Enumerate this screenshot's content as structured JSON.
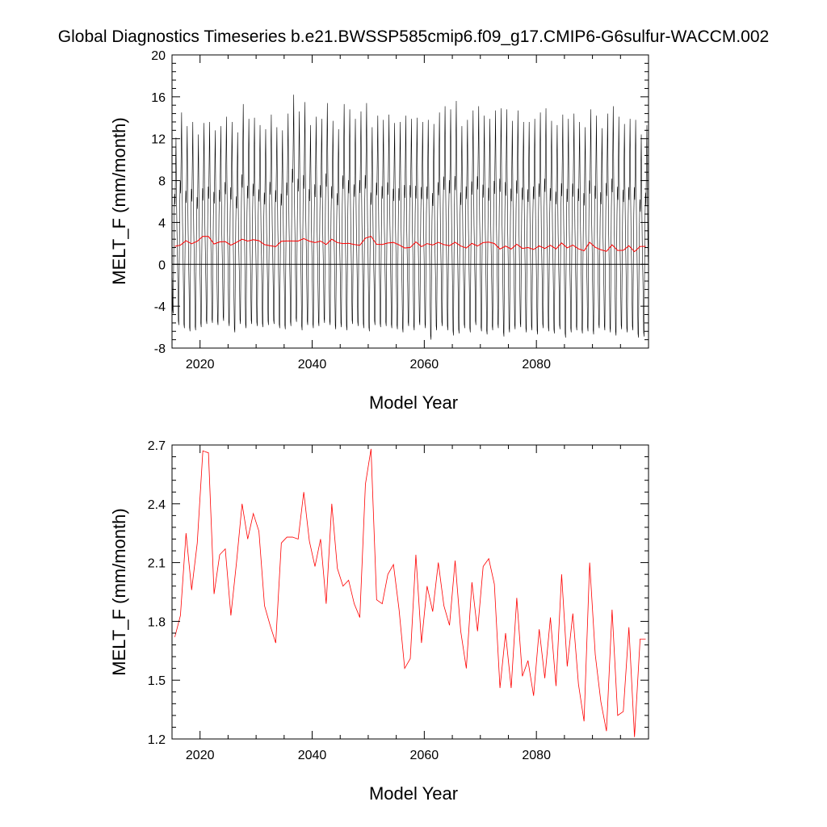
{
  "title": "Global Diagnostics Timeseries b.e21.BWSSP585cmip6.f09_g17.CMIP6-G6sulfur-WACCM.002",
  "colors": {
    "monthly": "#000000",
    "annual": "#ff0000",
    "zero_line": "#000000"
  },
  "chart_data": [
    {
      "type": "line",
      "xlabel": "Model Year",
      "ylabel": "MELT_F (mm/month)",
      "xlim": [
        2015,
        2100
      ],
      "ylim": [
        -8,
        20
      ],
      "xticks": [
        "2020",
        "2040",
        "2060",
        "2080"
      ],
      "yticks": [
        "-8",
        "-4",
        "0",
        "4",
        "8",
        "12",
        "16",
        "20"
      ],
      "reference_line_y": 0,
      "monthly_series": {
        "start_year": 2015,
        "months_per_year": 12,
        "annual_peak": [
          12.1,
          14.5,
          13.2,
          13.6,
          12.4,
          13.5,
          13.6,
          12.8,
          13.2,
          14.1,
          13.6,
          12.6,
          15.3,
          13.9,
          14.0,
          13.3,
          12.9,
          14.3,
          13.1,
          12.8,
          14.4,
          16.2,
          14.6,
          15.5,
          13.3,
          14.1,
          13.9,
          15.4,
          13.7,
          12.9,
          15.3,
          14.8,
          13.9,
          14.6,
          15.4,
          13.1,
          14.2,
          13.8,
          14.3,
          13.5,
          13.6,
          14.2,
          13.9,
          14.0,
          13.6,
          13.8,
          13.4,
          14.5,
          15.1,
          14.8,
          15.6,
          13.2,
          13.8,
          14.7,
          15.1,
          14.2,
          13.9,
          14.7,
          14.9,
          14.8,
          13.7,
          14.7,
          13.6,
          13.6,
          13.9,
          14.5,
          14.9,
          13.7,
          13.3,
          14.3,
          13.9,
          14.4,
          13.6,
          13.1,
          14.8,
          14.2,
          13.0,
          14.4,
          15.1,
          14.1,
          13.4,
          13.9,
          13.8,
          12.4,
          13.3
        ],
        "annual_trough": [
          -4.7,
          -5.8,
          -6.1,
          -6.4,
          -6.3,
          -6.0,
          -5.7,
          -5.6,
          -5.8,
          -5.4,
          -5.9,
          -6.5,
          -5.7,
          -6.1,
          -5.7,
          -5.9,
          -6.0,
          -5.8,
          -5.7,
          -6.1,
          -6.2,
          -5.9,
          -5.5,
          -6.3,
          -5.8,
          -6.1,
          -5.9,
          -5.6,
          -5.8,
          -6.2,
          -6.0,
          -6.3,
          -5.7,
          -5.9,
          -6.1,
          -6.4,
          -5.8,
          -6.0,
          -5.9,
          -6.1,
          -6.2,
          -6.5,
          -5.9,
          -6.3,
          -5.8,
          -6.1,
          -7.2,
          -6.3,
          -5.9,
          -6.3,
          -6.8,
          -6.6,
          -6.1,
          -6.5,
          -5.8,
          -6.4,
          -6.7,
          -6.3,
          -6.1,
          -6.9,
          -6.5,
          -6.2,
          -6.0,
          -6.5,
          -6.3,
          -6.7,
          -6.1,
          -6.4,
          -6.6,
          -6.2,
          -7.0,
          -6.5,
          -6.3,
          -6.6,
          -6.4,
          -6.7,
          -6.1,
          -6.3,
          -6.5,
          -6.8,
          -6.2,
          -6.5,
          -6.3,
          -7.0,
          -6.9
        ]
      },
      "annual_mean": {
        "x": [
          2015,
          2016,
          2017,
          2018,
          2019,
          2020,
          2021,
          2022,
          2023,
          2024,
          2025,
          2026,
          2027,
          2028,
          2029,
          2030,
          2031,
          2032,
          2033,
          2034,
          2035,
          2036,
          2037,
          2038,
          2039,
          2040,
          2041,
          2042,
          2043,
          2044,
          2045,
          2046,
          2047,
          2048,
          2049,
          2050,
          2051,
          2052,
          2053,
          2054,
          2055,
          2056,
          2057,
          2058,
          2059,
          2060,
          2061,
          2062,
          2063,
          2064,
          2065,
          2066,
          2067,
          2068,
          2069,
          2070,
          2071,
          2072,
          2073,
          2074,
          2075,
          2076,
          2077,
          2078,
          2079,
          2080,
          2081,
          2082,
          2083,
          2084,
          2085,
          2086,
          2087,
          2088,
          2089,
          2090,
          2091,
          2092,
          2093,
          2094,
          2095,
          2096,
          2097,
          2098,
          2099
        ],
        "y": [
          1.72,
          1.83,
          2.25,
          1.96,
          2.2,
          2.67,
          2.66,
          1.94,
          2.14,
          2.17,
          1.83,
          2.1,
          2.4,
          2.22,
          2.35,
          2.26,
          1.88,
          1.78,
          1.69,
          2.2,
          2.23,
          2.23,
          2.22,
          2.46,
          2.21,
          2.08,
          2.22,
          1.89,
          2.4,
          2.07,
          1.98,
          2.01,
          1.89,
          1.82,
          2.5,
          2.68,
          1.91,
          1.89,
          2.04,
          2.09,
          1.86,
          1.56,
          1.61,
          2.14,
          1.69,
          1.98,
          1.85,
          2.1,
          1.88,
          1.78,
          2.11,
          1.75,
          1.56,
          2.0,
          1.75,
          2.08,
          2.12,
          1.99,
          1.46,
          1.74,
          1.46,
          1.92,
          1.52,
          1.6,
          1.42,
          1.76,
          1.51,
          1.82,
          1.47,
          2.04,
          1.57,
          1.84,
          1.48,
          1.29,
          2.1,
          1.63,
          1.39,
          1.24,
          1.86,
          1.32,
          1.34,
          1.77,
          1.21,
          1.71,
          1.71
        ]
      }
    },
    {
      "type": "line",
      "xlabel": "Model Year",
      "ylabel": "MELT_F (mm/month)",
      "xlim": [
        2015,
        2100
      ],
      "ylim": [
        1.2,
        2.7
      ],
      "xticks": [
        "2020",
        "2040",
        "2060",
        "2080"
      ],
      "yticks": [
        "1.2",
        "1.5",
        "1.8",
        "2.1",
        "2.4",
        "2.7"
      ],
      "series": [
        {
          "x": [
            2015,
            2016,
            2017,
            2018,
            2019,
            2020,
            2021,
            2022,
            2023,
            2024,
            2025,
            2026,
            2027,
            2028,
            2029,
            2030,
            2031,
            2032,
            2033,
            2034,
            2035,
            2036,
            2037,
            2038,
            2039,
            2040,
            2041,
            2042,
            2043,
            2044,
            2045,
            2046,
            2047,
            2048,
            2049,
            2050,
            2051,
            2052,
            2053,
            2054,
            2055,
            2056,
            2057,
            2058,
            2059,
            2060,
            2061,
            2062,
            2063,
            2064,
            2065,
            2066,
            2067,
            2068,
            2069,
            2070,
            2071,
            2072,
            2073,
            2074,
            2075,
            2076,
            2077,
            2078,
            2079,
            2080,
            2081,
            2082,
            2083,
            2084,
            2085,
            2086,
            2087,
            2088,
            2089,
            2090,
            2091,
            2092,
            2093,
            2094,
            2095,
            2096,
            2097,
            2098,
            2099
          ],
          "y": [
            1.72,
            1.83,
            2.25,
            1.96,
            2.2,
            2.67,
            2.66,
            1.94,
            2.14,
            2.17,
            1.83,
            2.1,
            2.4,
            2.22,
            2.35,
            2.26,
            1.88,
            1.78,
            1.69,
            2.2,
            2.23,
            2.23,
            2.22,
            2.46,
            2.21,
            2.08,
            2.22,
            1.89,
            2.4,
            2.07,
            1.98,
            2.01,
            1.89,
            1.82,
            2.5,
            2.68,
            1.91,
            1.89,
            2.04,
            2.09,
            1.86,
            1.56,
            1.61,
            2.14,
            1.69,
            1.98,
            1.85,
            2.1,
            1.88,
            1.78,
            2.11,
            1.75,
            1.56,
            2.0,
            1.75,
            2.08,
            2.12,
            1.99,
            1.46,
            1.74,
            1.46,
            1.92,
            1.52,
            1.6,
            1.42,
            1.76,
            1.51,
            1.82,
            1.47,
            2.04,
            1.57,
            1.84,
            1.48,
            1.29,
            2.1,
            1.63,
            1.39,
            1.24,
            1.86,
            1.32,
            1.34,
            1.77,
            1.21,
            1.71,
            1.71
          ]
        }
      ]
    }
  ]
}
